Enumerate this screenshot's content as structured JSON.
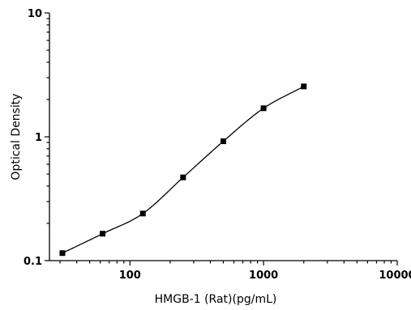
{
  "chart_data": {
    "type": "scatter",
    "title": "",
    "xlabel": "HMGB-1 (Rat)(pg/mL)",
    "ylabel": "Optical Density",
    "x_scale": "log",
    "y_scale": "log",
    "xlim": [
      25,
      10000
    ],
    "ylim": [
      0.1,
      10
    ],
    "x_ticks": [
      100,
      1000,
      10000
    ],
    "x_tick_labels": [
      "100",
      "1000",
      "10000"
    ],
    "y_ticks": [
      0.1,
      1,
      10
    ],
    "y_tick_labels": [
      "0.1",
      "1",
      "10"
    ],
    "grid": false,
    "legend": "none",
    "series": [
      {
        "x": [
          31.25,
          62.5,
          125,
          250,
          500,
          1000,
          2000
        ],
        "y": [
          0.115,
          0.165,
          0.24,
          0.47,
          0.92,
          1.7,
          2.55
        ],
        "marker": "square",
        "fit_line": true
      }
    ],
    "colors": {
      "marker": "#000000",
      "line": "#000000",
      "axis": "#000000"
    }
  }
}
